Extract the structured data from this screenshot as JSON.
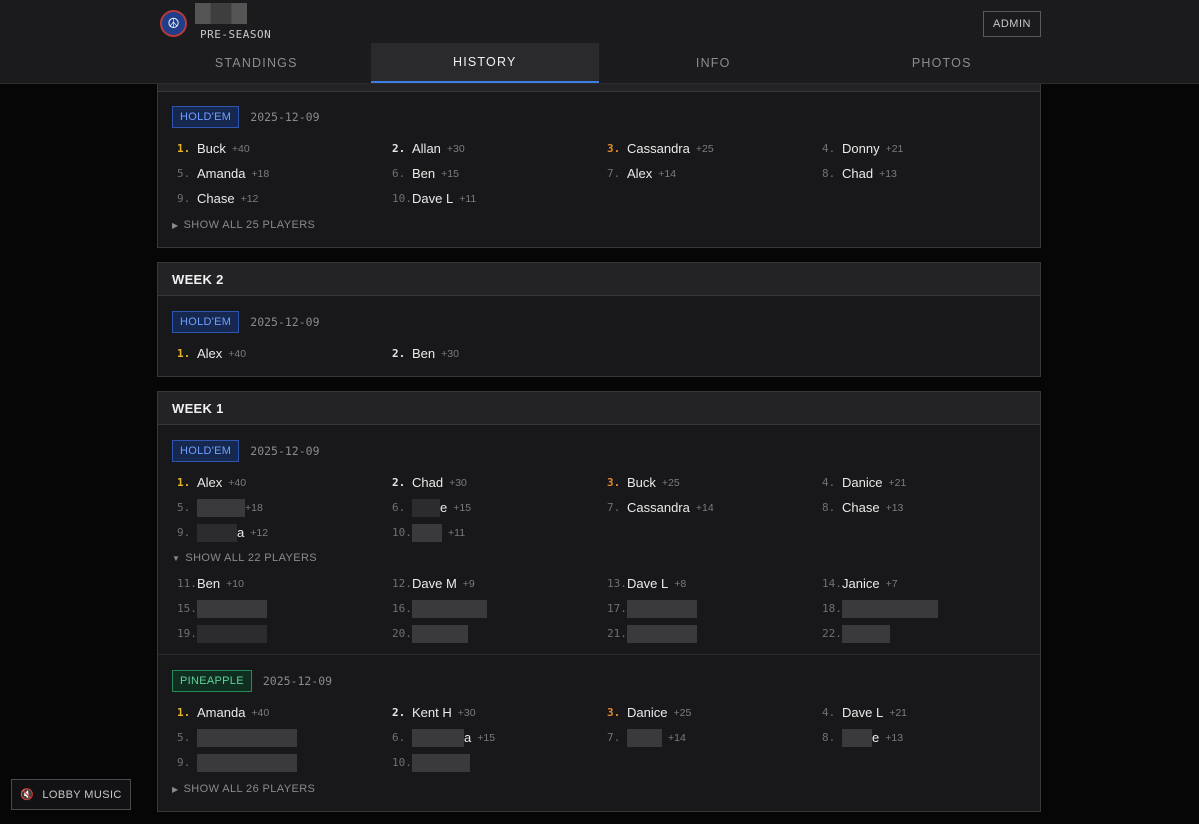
{
  "header": {
    "season": "PRE-SEASON",
    "admin_label": "ADMIN",
    "logo_glyph": "☮",
    "tabs": [
      {
        "label": "STANDINGS",
        "active": false
      },
      {
        "label": "HISTORY",
        "active": true
      },
      {
        "label": "INFO",
        "active": false
      },
      {
        "label": "PHOTOS",
        "active": false
      }
    ]
  },
  "weeks": [
    {
      "title": "",
      "events": [
        {
          "type": "HOLD'EM",
          "date": "2025-12-09",
          "results": [
            {
              "rank": "1.",
              "name": "Buck",
              "pts": "+40"
            },
            {
              "rank": "2.",
              "name": "Allan",
              "pts": "+30"
            },
            {
              "rank": "3.",
              "name": "Cassandra",
              "pts": "+25"
            },
            {
              "rank": "4.",
              "name": "Donny",
              "pts": "+21"
            },
            {
              "rank": "5.",
              "name": "Amanda",
              "pts": "+18"
            },
            {
              "rank": "6.",
              "name": "Ben",
              "pts": "+15"
            },
            {
              "rank": "7.",
              "name": "Alex",
              "pts": "+14"
            },
            {
              "rank": "8.",
              "name": "Chad",
              "pts": "+13"
            },
            {
              "rank": "9.",
              "name": "Chase",
              "pts": "+12"
            },
            {
              "rank": "10.",
              "name": "Dave L",
              "pts": "+11"
            }
          ],
          "show_all": "SHOW ALL 25 PLAYERS"
        }
      ]
    },
    {
      "title": "WEEK 2",
      "events": [
        {
          "type": "HOLD'EM",
          "date": "2025-12-09",
          "results": [
            {
              "rank": "1.",
              "name": "Alex",
              "pts": "+40"
            },
            {
              "rank": "2.",
              "name": "Ben",
              "pts": "+30"
            }
          ]
        }
      ]
    },
    {
      "title": "WEEK 1",
      "events": [
        {
          "type": "HOLD'EM",
          "date": "2025-12-09",
          "results": [
            {
              "rank": "1.",
              "name": "Alex",
              "pts": "+40"
            },
            {
              "rank": "2.",
              "name": "Chad",
              "pts": "+30"
            },
            {
              "rank": "3.",
              "name": "Buck",
              "pts": "+25"
            },
            {
              "rank": "4.",
              "name": "Danice",
              "pts": "+21"
            },
            {
              "rank": "5.",
              "name": "",
              "pts": "+18"
            },
            {
              "rank": "6.",
              "name": "e",
              "pts": "+15"
            },
            {
              "rank": "7.",
              "name": "Cassandra",
              "pts": "+14"
            },
            {
              "rank": "8.",
              "name": "Chase",
              "pts": "+13"
            },
            {
              "rank": "9.",
              "name": "a",
              "pts": "+12"
            },
            {
              "rank": "10.",
              "name": "",
              "pts": "+11"
            }
          ],
          "show_all": "SHOW ALL 22 PLAYERS",
          "expanded": [
            {
              "rank": "11.",
              "name": "Ben",
              "pts": "+10"
            },
            {
              "rank": "12.",
              "name": "Dave M",
              "pts": "+9"
            },
            {
              "rank": "13.",
              "name": "Dave L",
              "pts": "+8"
            },
            {
              "rank": "14.",
              "name": "Janice",
              "pts": "+7"
            },
            {
              "rank": "15.",
              "name": "",
              "pts": ""
            },
            {
              "rank": "16.",
              "name": "",
              "pts": ""
            },
            {
              "rank": "17.",
              "name": "",
              "pts": ""
            },
            {
              "rank": "18.",
              "name": "",
              "pts": ""
            },
            {
              "rank": "19.",
              "name": "",
              "pts": ""
            },
            {
              "rank": "20.",
              "name": "",
              "pts": ""
            },
            {
              "rank": "21.",
              "name": "",
              "pts": ""
            },
            {
              "rank": "22.",
              "name": "",
              "pts": ""
            }
          ]
        },
        {
          "type": "PINEAPPLE",
          "date": "2025-12-09",
          "results": [
            {
              "rank": "1.",
              "name": "Amanda",
              "pts": "+40"
            },
            {
              "rank": "2.",
              "name": "Kent H",
              "pts": "+30"
            },
            {
              "rank": "3.",
              "name": "Danice",
              "pts": "+25"
            },
            {
              "rank": "4.",
              "name": "Dave L",
              "pts": "+21"
            },
            {
              "rank": "5.",
              "name": "",
              "pts": ""
            },
            {
              "rank": "6.",
              "name": "a",
              "pts": "+15"
            },
            {
              "rank": "7.",
              "name": "",
              "pts": "+14"
            },
            {
              "rank": "8.",
              "name": "e",
              "pts": "+13"
            },
            {
              "rank": "9.",
              "name": "",
              "pts": ""
            },
            {
              "rank": "10.",
              "name": "",
              "pts": ""
            }
          ],
          "show_all": "SHOW ALL 26 PLAYERS"
        }
      ]
    }
  ],
  "lobby_music_label": "LOBBY MUSIC",
  "lobby_music_icon": "🔇"
}
